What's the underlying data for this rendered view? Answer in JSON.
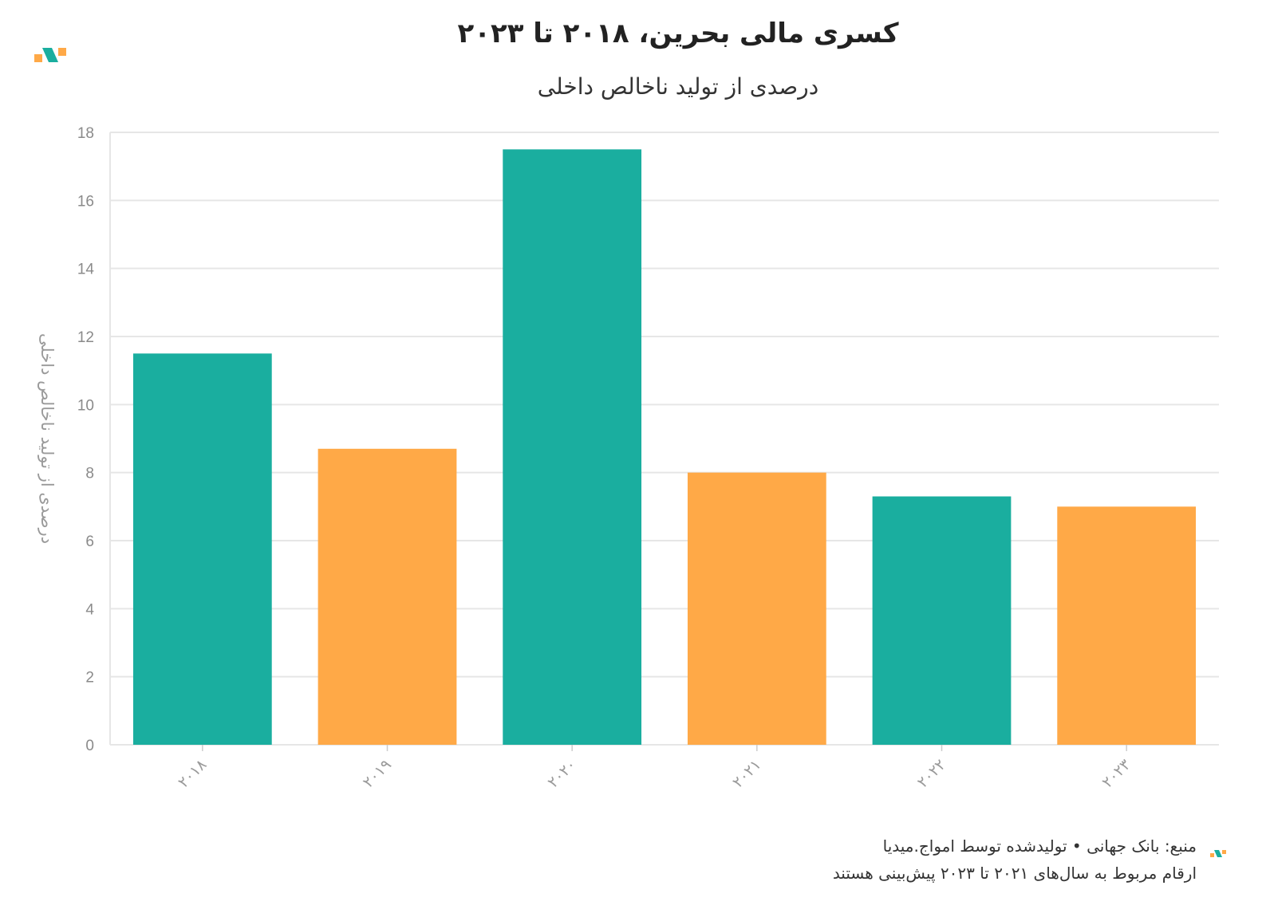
{
  "chart_data": {
    "type": "bar",
    "title": "کسری مالی بحرین، ۲۰۱۸ تا ۲۰۲۳",
    "subtitle": "درصدی از تولید ناخالص داخلی",
    "ylabel": "درصدی از تولید ناخالص داخلی",
    "xlabel": "",
    "categories": [
      "۲۰۱۸",
      "۲۰۱۹",
      "۲۰۲۰",
      "۲۰۲۱",
      "۲۰۲۲",
      "۲۰۲۳"
    ],
    "values": [
      11.5,
      8.7,
      17.5,
      8.0,
      7.3,
      7.0
    ],
    "bar_colors": [
      "#1aae9f",
      "#ffa947",
      "#1aae9f",
      "#ffa947",
      "#1aae9f",
      "#ffa947"
    ],
    "ylim": [
      0,
      18
    ],
    "yticks": [
      "0",
      "2",
      "4",
      "6",
      "8",
      "10",
      "12",
      "14",
      "16",
      "18"
    ],
    "grid": true,
    "legend": "none"
  },
  "footer": {
    "source": "منبع: بانک جهانی • تولیدشده توسط امواج.میدیا",
    "note": "ارقام مربوط به سال‌های ۲۰۲۱ تا ۲۰۲۳ پیش‌بینی هستند"
  },
  "colors": {
    "teal": "#1aae9f",
    "orange": "#ffa947",
    "grid": "#e6e6e6"
  },
  "icons": {
    "brand": "amwaj-logo-icon"
  }
}
